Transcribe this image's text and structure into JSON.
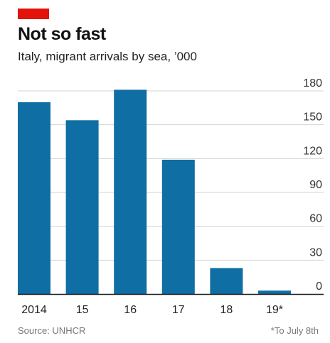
{
  "header": {
    "title": "Not so fast",
    "subtitle": "Italy, migrant arrivals by sea, ’000"
  },
  "footer": {
    "source": "Source: UNHCR",
    "note": "*To July 8th"
  },
  "colors": {
    "bar": "#0f6ea3",
    "accent": "#e3120b",
    "grid": "#d3d3d3",
    "axis": "#1a1a1a"
  },
  "chart_data": {
    "type": "bar",
    "categories": [
      "2014",
      "15",
      "16",
      "17",
      "18",
      "19*"
    ],
    "values": [
      170,
      154,
      181,
      119,
      23,
      3
    ],
    "yticks": [
      0,
      30,
      60,
      90,
      120,
      150,
      180
    ],
    "ylim": [
      0,
      180
    ],
    "y_axis_side": "right",
    "grid": true,
    "legend": "none"
  }
}
